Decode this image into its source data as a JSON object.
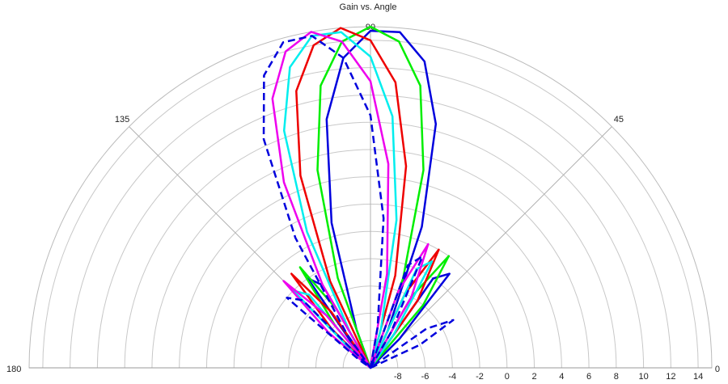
{
  "chart_data": {
    "type": "polar",
    "title": "Gain vs. Angle",
    "theta": [
      0,
      5,
      10,
      15,
      20,
      25,
      30,
      35,
      40,
      45,
      50,
      55,
      60,
      65,
      70,
      75,
      80,
      85,
      90,
      95,
      100,
      105,
      110,
      115,
      120,
      125,
      130,
      135,
      140,
      145,
      150,
      155,
      160,
      165,
      170,
      175,
      180
    ],
    "rlim": [
      -10,
      15
    ],
    "rticks": [
      -8,
      -6,
      -4,
      -2,
      0,
      2,
      4,
      6,
      8,
      10,
      12,
      14
    ],
    "thetaticks": [
      0,
      45,
      90,
      135,
      180
    ],
    "grid": true,
    "series": [
      {
        "color": "#0000dd",
        "style": "solid",
        "values": [
          -10,
          -10,
          -10,
          -10,
          -10,
          -10,
          -10,
          -10,
          -10,
          -7,
          -1,
          -2,
          -10,
          -7,
          1,
          8.5,
          12.8,
          14.7,
          14.7,
          12.8,
          8.5,
          1,
          -7,
          -10,
          -3,
          -2,
          -9,
          -10,
          -10,
          -10,
          -10,
          -10,
          -10,
          -10,
          -10,
          -10,
          -10
        ]
      },
      {
        "color": "#00ee00",
        "style": "solid",
        "values": [
          -10,
          -10,
          -10,
          -10,
          -10,
          -10,
          -10,
          -10,
          -10,
          -10,
          -4,
          0,
          -4,
          -10,
          -3,
          5,
          11,
          14,
          15,
          14,
          11,
          5,
          -3,
          -10,
          -5,
          -1,
          -6,
          -10,
          -10,
          -10,
          -10,
          -10,
          -10,
          -10,
          -10,
          -10,
          -10
        ]
      },
      {
        "color": "#ee0000",
        "style": "solid",
        "values": [
          -10,
          -10,
          -10,
          -10,
          -10,
          -10,
          -10,
          -10,
          -10,
          -10,
          -10,
          -4,
          0,
          -4,
          -10,
          -3,
          5,
          11,
          14,
          15,
          14,
          11,
          5,
          -3,
          -10,
          -5,
          -1,
          -6,
          -10,
          -10,
          -10,
          -10,
          -10,
          -10,
          -10,
          -10,
          -10
        ]
      },
      {
        "color": "#00eeee",
        "style": "solid",
        "values": [
          -10,
          -10,
          -10,
          -10,
          -10,
          -10,
          -10,
          -10,
          -10,
          -10,
          -10,
          -7,
          -1,
          -2,
          -10,
          -7,
          1,
          8.5,
          12.8,
          14.7,
          14.7,
          12.8,
          8.5,
          1,
          -7,
          -10,
          -3,
          -2,
          -9,
          -10,
          -10,
          -10,
          -10,
          -10,
          -10,
          -10,
          -10
        ]
      },
      {
        "color": "#ee00ee",
        "style": "solid",
        "values": [
          -10,
          -10,
          -10,
          -10,
          -10,
          -10,
          -10,
          -10,
          -10,
          -10,
          -10,
          -10,
          -4,
          0,
          -4,
          -10,
          -3,
          5,
          11,
          14,
          15,
          14,
          11,
          5,
          -3,
          -10,
          -5,
          -1,
          -6,
          -10,
          -10,
          -10,
          -10,
          -10,
          -10,
          -10,
          -10
        ]
      },
      {
        "color": "#0000dd",
        "style": "dashed",
        "values": [
          -10,
          -10,
          -10,
          -10,
          -10,
          -6,
          -3,
          -5,
          -10,
          -10,
          -10,
          -10,
          -7,
          -1,
          -2,
          -10,
          -7,
          1,
          8.5,
          12.8,
          14.7,
          14.7,
          12.8,
          8.5,
          1,
          -7,
          -10,
          -3,
          -2,
          -9,
          -10,
          -10,
          -10,
          -10,
          -10,
          -10,
          -10
        ]
      }
    ]
  }
}
